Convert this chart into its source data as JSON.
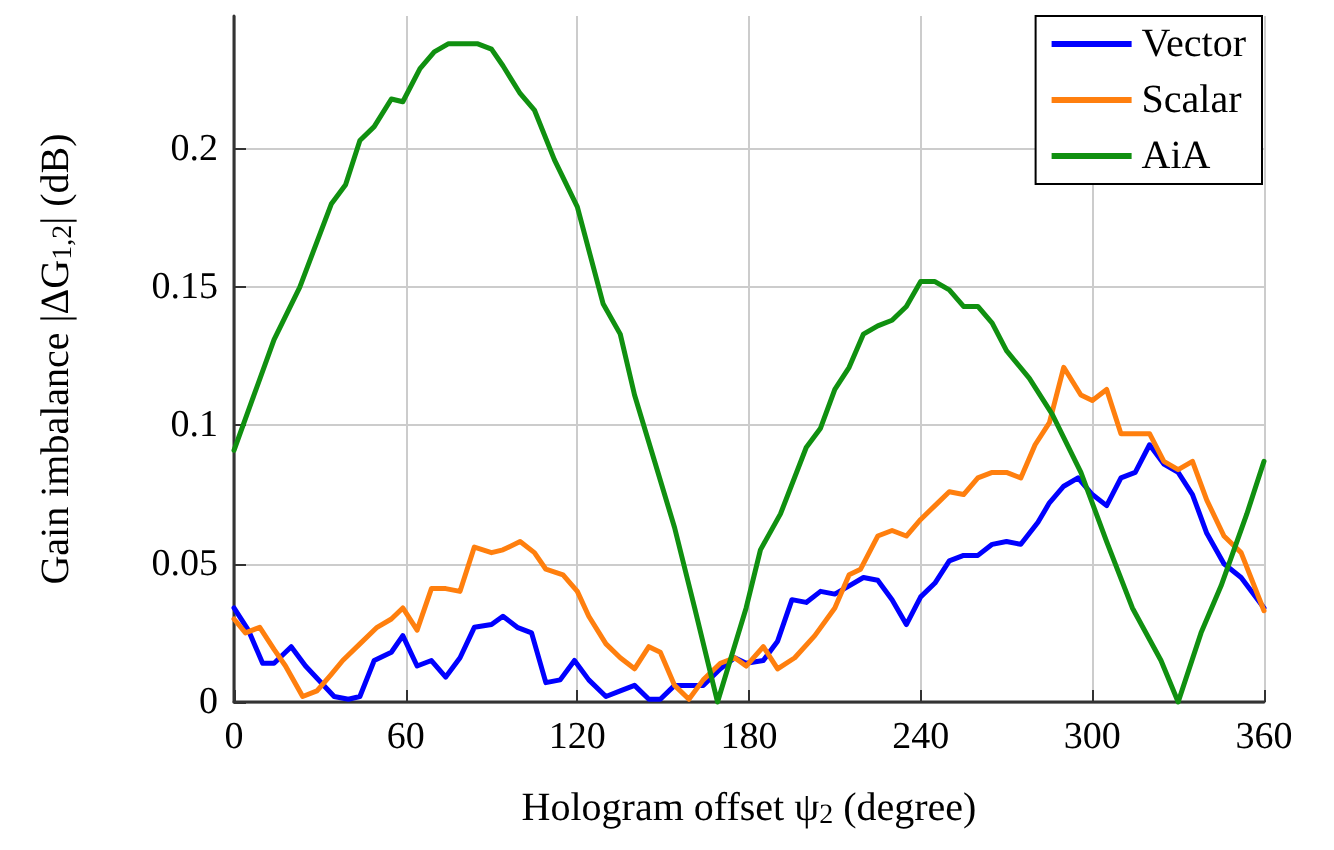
{
  "chart_data": {
    "type": "line",
    "xlabel": "Hologram offset ψ$_{2}$ (degree)",
    "ylabel": "Gain imbalance |ΔG$_{1,2}$| (dB)",
    "xlim": [
      0,
      360
    ],
    "xticks": [
      0,
      60,
      120,
      180,
      240,
      300,
      360
    ],
    "ylim": [
      0,
      0.248
    ],
    "yticks": [
      0,
      0.05,
      0.1,
      0.15,
      0.2
    ],
    "grid": true,
    "legend": "top right",
    "marker": "none",
    "line_style": "solid",
    "series": [
      {
        "name": "Vector",
        "color": "#0000ff",
        "x": [
          0,
          5,
          10,
          14,
          20,
          25,
          35,
          40,
          44,
          49,
          55,
          59,
          64,
          69,
          74,
          79,
          84,
          90,
          94,
          99,
          104,
          109,
          114,
          119,
          124,
          130,
          135,
          140,
          145,
          149,
          154,
          159,
          164,
          170,
          175,
          179,
          185,
          190,
          195,
          200,
          205,
          210,
          215,
          220,
          225,
          230,
          235,
          240,
          245,
          250,
          255,
          260,
          265,
          270,
          275,
          281,
          285,
          290,
          295,
          300,
          305,
          310,
          315,
          320,
          325,
          330,
          335,
          340,
          346,
          352,
          360
        ],
        "values": [
          0.034,
          0.026,
          0.014,
          0.014,
          0.02,
          0.013,
          0.002,
          0.001,
          0.002,
          0.015,
          0.018,
          0.024,
          0.013,
          0.015,
          0.009,
          0.016,
          0.027,
          0.028,
          0.031,
          0.027,
          0.025,
          0.007,
          0.008,
          0.015,
          0.008,
          0.002,
          0.004,
          0.006,
          0.001,
          0.001,
          0.006,
          0.006,
          0.006,
          0.012,
          0.016,
          0.014,
          0.015,
          0.022,
          0.037,
          0.036,
          0.04,
          0.039,
          0.042,
          0.045,
          0.044,
          0.037,
          0.028,
          0.038,
          0.043,
          0.051,
          0.053,
          0.053,
          0.057,
          0.058,
          0.057,
          0.065,
          0.072,
          0.078,
          0.081,
          0.075,
          0.071,
          0.081,
          0.083,
          0.093,
          0.086,
          0.083,
          0.075,
          0.061,
          0.05,
          0.045,
          0.034
        ]
      },
      {
        "name": "Scalar",
        "color": "#ff7f0e",
        "x": [
          0,
          4,
          9,
          14,
          18,
          24,
          29,
          34,
          38,
          44,
          50,
          55,
          59,
          64,
          69,
          74,
          79,
          84,
          90,
          94,
          100,
          105,
          109,
          115,
          120,
          124,
          130,
          135,
          140,
          145,
          149,
          154,
          159,
          164,
          170,
          175,
          179,
          185,
          190,
          196,
          203,
          210,
          215,
          219,
          225,
          230,
          235,
          240,
          245,
          250,
          255,
          260,
          265,
          270,
          275,
          280,
          285,
          290,
          296,
          300,
          305,
          310,
          315,
          320,
          325,
          330,
          335,
          340,
          346,
          352,
          360
        ],
        "values": [
          0.03,
          0.025,
          0.027,
          0.019,
          0.013,
          0.002,
          0.004,
          0.01,
          0.015,
          0.021,
          0.027,
          0.03,
          0.034,
          0.026,
          0.041,
          0.041,
          0.04,
          0.056,
          0.054,
          0.055,
          0.058,
          0.054,
          0.048,
          0.046,
          0.04,
          0.031,
          0.021,
          0.016,
          0.012,
          0.02,
          0.018,
          0.006,
          0.001,
          0.008,
          0.014,
          0.016,
          0.013,
          0.02,
          0.012,
          0.016,
          0.024,
          0.034,
          0.046,
          0.048,
          0.06,
          0.062,
          0.06,
          0.066,
          0.071,
          0.076,
          0.075,
          0.081,
          0.083,
          0.083,
          0.081,
          0.093,
          0.101,
          0.121,
          0.111,
          0.109,
          0.113,
          0.097,
          0.097,
          0.097,
          0.087,
          0.084,
          0.087,
          0.073,
          0.06,
          0.054,
          0.033
        ]
      },
      {
        "name": "AiA",
        "color": "#109010",
        "x": [
          0,
          7,
          14,
          23,
          34,
          39,
          44,
          49,
          55,
          59,
          65,
          70,
          75,
          85,
          90,
          94,
          100,
          105,
          112,
          120,
          129,
          135,
          140,
          147,
          154,
          161,
          169,
          179,
          184,
          191,
          200,
          205,
          210,
          215,
          220,
          225,
          230,
          235,
          240,
          245,
          250,
          255,
          260,
          265,
          270,
          278,
          286,
          296,
          305,
          314,
          324,
          330,
          338,
          345,
          354,
          360
        ],
        "values": [
          0.091,
          0.111,
          0.131,
          0.15,
          0.18,
          0.187,
          0.203,
          0.208,
          0.218,
          0.217,
          0.229,
          0.235,
          0.238,
          0.238,
          0.236,
          0.23,
          0.22,
          0.214,
          0.196,
          0.179,
          0.144,
          0.133,
          0.111,
          0.087,
          0.063,
          0.034,
          0,
          0.034,
          0.055,
          0.068,
          0.092,
          0.099,
          0.113,
          0.121,
          0.133,
          0.136,
          0.138,
          0.143,
          0.152,
          0.152,
          0.149,
          0.143,
          0.143,
          0.137,
          0.127,
          0.117,
          0.104,
          0.083,
          0.058,
          0.034,
          0.015,
          0,
          0.025,
          0.042,
          0.068,
          0.087
        ]
      }
    ]
  }
}
